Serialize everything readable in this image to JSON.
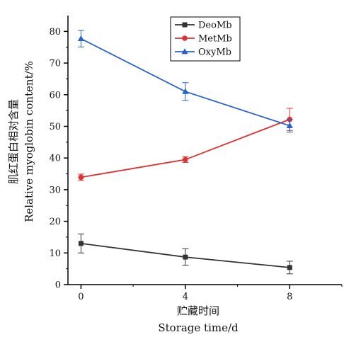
{
  "chart_data": {
    "type": "line",
    "xlabel_cn": "贮藏时间",
    "xlabel_en": "Storage time/d",
    "ylabel_cn": "肌红蛋白相对含量",
    "ylabel_en": "Relative myoglobin content/%",
    "x": [
      0,
      4,
      8
    ],
    "xticks": [
      "0",
      "4",
      "8"
    ],
    "xlim": [
      -0.5,
      10
    ],
    "ylim": [
      0,
      85
    ],
    "yticks": [
      "0",
      "10",
      "20",
      "30",
      "40",
      "50",
      "60",
      "70",
      "80"
    ],
    "grid": false,
    "legend_position": "top-right",
    "series": [
      {
        "name": "DeoMb",
        "color": "#333333",
        "marker": "square",
        "values": [
          13.0,
          8.7,
          5.4
        ],
        "errors": [
          3.0,
          2.6,
          2.0
        ]
      },
      {
        "name": "MetMb",
        "color": "#e03030",
        "marker": "circle",
        "values": [
          33.9,
          39.5,
          52.2
        ],
        "errors": [
          1.0,
          0.9,
          3.5
        ]
      },
      {
        "name": "OxyMb",
        "color": "#2a62c9",
        "marker": "triangle",
        "values": [
          77.7,
          61.0,
          50.2
        ],
        "errors": [
          2.6,
          2.8,
          2.0
        ]
      }
    ]
  }
}
